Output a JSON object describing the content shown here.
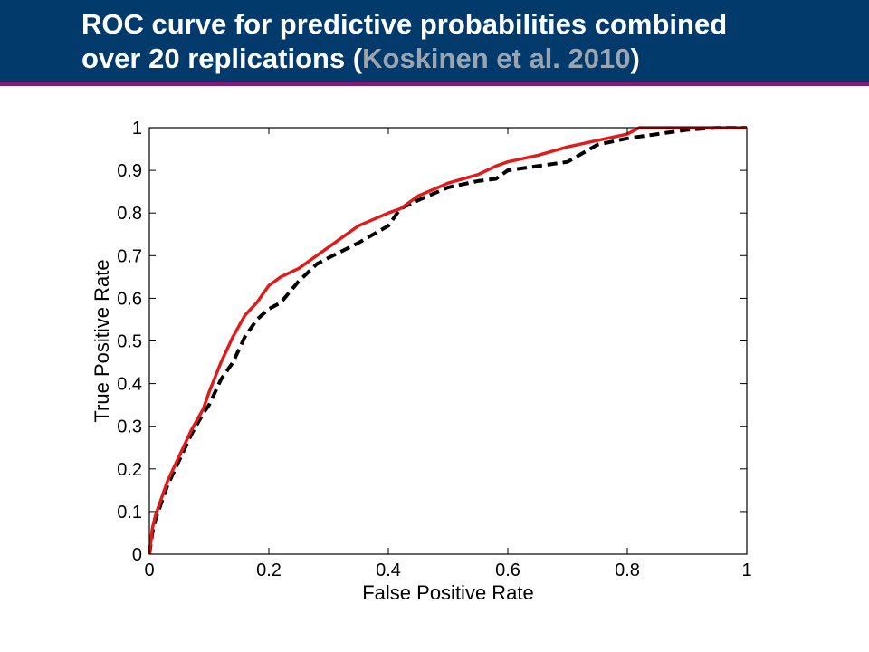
{
  "slide": {
    "title_line1": "ROC curve for predictive probabilities combined",
    "title_line2_pre": "over 20 replications (",
    "title_citation": "Koskinen et al. 2010",
    "title_line2_post": ")",
    "header_color": "#013a6b",
    "rule_color": "#7b1d7e",
    "citation_color": "#9aa5b1"
  },
  "chart_data": {
    "type": "line",
    "xlabel": "False Positive Rate",
    "ylabel": "True Positive Rate",
    "xlim": [
      0,
      1
    ],
    "ylim": [
      0,
      1
    ],
    "xticks": [
      "0",
      "0.2",
      "0.4",
      "0.6",
      "0.8",
      "1"
    ],
    "yticks": [
      "0",
      "0.1",
      "0.2",
      "0.3",
      "0.4",
      "0.5",
      "0.6",
      "0.7",
      "0.8",
      "0.9",
      "1"
    ],
    "grid": false,
    "series": [
      {
        "style": "dashed",
        "color": "#000000",
        "x": [
          0,
          0.005,
          0.01,
          0.02,
          0.03,
          0.05,
          0.07,
          0.09,
          0.1,
          0.12,
          0.14,
          0.16,
          0.18,
          0.2,
          0.22,
          0.25,
          0.28,
          0.3,
          0.35,
          0.4,
          0.42,
          0.45,
          0.5,
          0.55,
          0.58,
          0.6,
          0.65,
          0.7,
          0.75,
          0.8,
          0.85,
          0.9,
          0.95,
          1.0
        ],
        "y": [
          0,
          0.05,
          0.08,
          0.12,
          0.16,
          0.22,
          0.28,
          0.33,
          0.35,
          0.41,
          0.45,
          0.51,
          0.55,
          0.575,
          0.59,
          0.64,
          0.68,
          0.695,
          0.73,
          0.77,
          0.81,
          0.83,
          0.86,
          0.875,
          0.88,
          0.9,
          0.91,
          0.92,
          0.96,
          0.975,
          0.985,
          0.995,
          1.0,
          1.0
        ]
      },
      {
        "style": "solid",
        "color": "#e01b1b",
        "x": [
          0,
          0.005,
          0.01,
          0.02,
          0.03,
          0.05,
          0.07,
          0.09,
          0.1,
          0.12,
          0.14,
          0.16,
          0.18,
          0.2,
          0.22,
          0.25,
          0.28,
          0.3,
          0.35,
          0.4,
          0.42,
          0.45,
          0.5,
          0.55,
          0.58,
          0.6,
          0.65,
          0.7,
          0.75,
          0.8,
          0.82,
          0.85,
          0.9,
          0.95,
          1.0
        ],
        "y": [
          0,
          0.06,
          0.09,
          0.13,
          0.17,
          0.23,
          0.29,
          0.34,
          0.38,
          0.45,
          0.51,
          0.56,
          0.59,
          0.63,
          0.65,
          0.67,
          0.7,
          0.72,
          0.77,
          0.8,
          0.81,
          0.84,
          0.87,
          0.89,
          0.91,
          0.92,
          0.935,
          0.955,
          0.97,
          0.985,
          1.0,
          1.0,
          1.0,
          1.0,
          1.0
        ]
      }
    ]
  }
}
